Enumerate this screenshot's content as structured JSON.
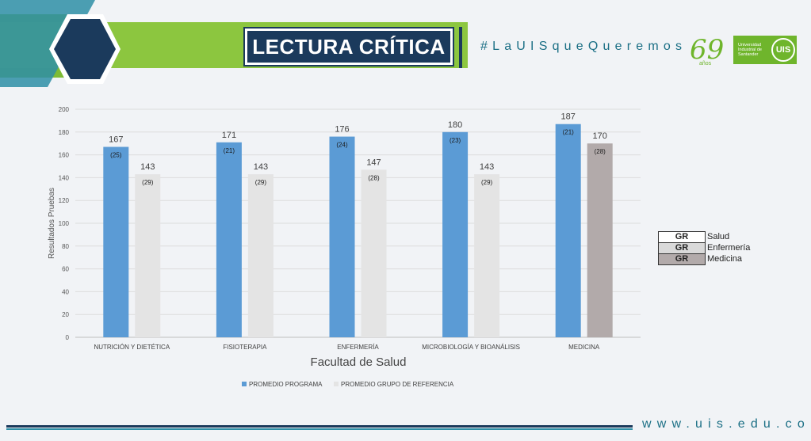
{
  "header": {
    "title": "LECTURA CRÍTICA",
    "hashtag": "#LaUISqueQueremos",
    "anniversary_number": "69",
    "anniversary_word": "años",
    "university_name": "Universidad Industrial de Santander",
    "university_mark": "UIS"
  },
  "footer": {
    "url": "www.uis.edu.co"
  },
  "colors": {
    "programa": "#5b9bd5",
    "referencia": "#e4e4e4",
    "medicina_ref": "#b2aaaa",
    "salud_box": "#ffffff",
    "enfermeria_box": "#d9d9d9",
    "medicina_box": "#b2aaaa",
    "header_green": "#8cc63f",
    "navy": "#1b3a5c",
    "teal": "#2e8ea6"
  },
  "chart_data": {
    "type": "bar",
    "categories": [
      "NUTRICIÓN Y DIETÉTICA",
      "FISIOTERAPIA",
      "ENFERMERÍA",
      "MICROBIOLOGÍA Y BIOANÁLISIS",
      "MEDICINA"
    ],
    "series": [
      {
        "name": "PROMEDIO PROGRAMA",
        "values": [
          167,
          171,
          176,
          180,
          187
        ],
        "counts": [
          "(25)",
          "(21)",
          "(24)",
          "(23)",
          "(21)"
        ]
      },
      {
        "name": "PROMEDIO GRUPO DE REFERENCIA",
        "values": [
          143,
          143,
          147,
          143,
          170
        ],
        "counts": [
          "(29)",
          "(29)",
          "(28)",
          "(29)",
          "(28)"
        ]
      }
    ],
    "xlabel": "Facultad de Salud",
    "ylabel": "Resultados Pruebas",
    "ylim": [
      0,
      200
    ],
    "yticks": [
      0,
      20,
      40,
      60,
      80,
      100,
      120,
      140,
      160,
      180,
      200
    ],
    "grid": true,
    "legend": "bottom"
  },
  "reference_legend": [
    {
      "code": "GR",
      "label": "Salud"
    },
    {
      "code": "GR",
      "label": "Enfermería"
    },
    {
      "code": "GR",
      "label": "Medicina"
    }
  ]
}
